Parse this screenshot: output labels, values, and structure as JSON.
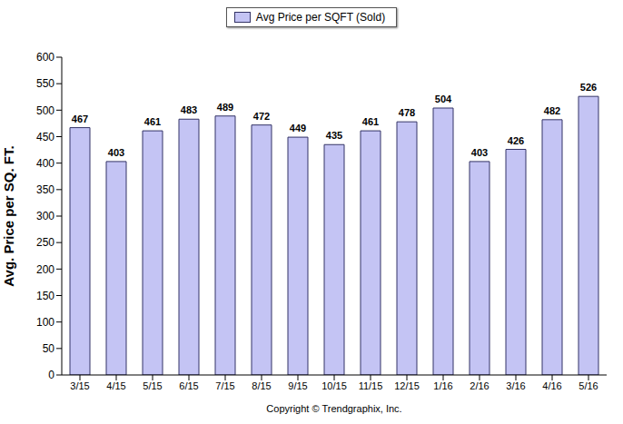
{
  "chart_data": {
    "type": "bar",
    "categories": [
      "3/15",
      "4/15",
      "5/15",
      "6/15",
      "7/15",
      "8/15",
      "9/15",
      "10/15",
      "11/15",
      "12/15",
      "1/16",
      "2/16",
      "3/16",
      "4/16",
      "5/16"
    ],
    "series": [
      {
        "name": "Avg Price per SQFT (Sold)",
        "color": "#c4c4f4",
        "values": [
          467,
          403,
          461,
          483,
          489,
          472,
          449,
          435,
          461,
          478,
          504,
          403,
          426,
          482,
          526
        ]
      }
    ],
    "y_label": "Avg. Price per SQ. FT.",
    "ylim": [
      0,
      600
    ],
    "yticks": [
      0,
      50,
      100,
      150,
      200,
      250,
      300,
      350,
      400,
      450,
      500,
      550,
      600
    ],
    "grid": false,
    "legend": "top",
    "data_labels": true,
    "annotations": [
      "Copyright © Trendgraphix, Inc."
    ]
  }
}
